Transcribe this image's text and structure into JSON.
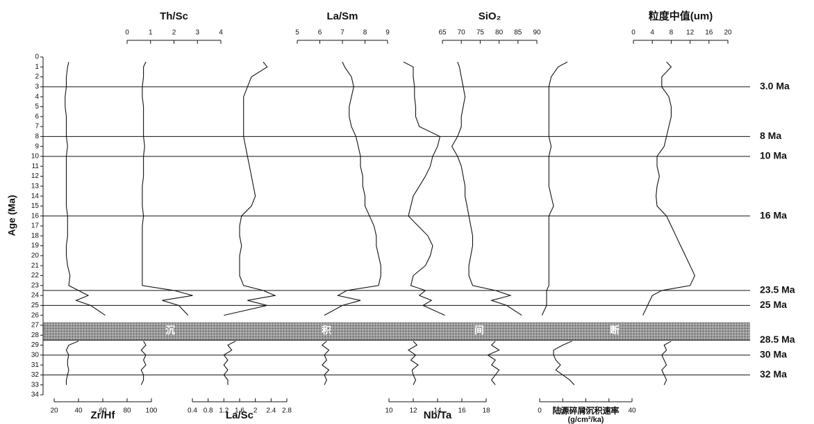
{
  "chart_data": {
    "type": "line",
    "ylabel": "Age (Ma)",
    "ylim": [
      0,
      34
    ],
    "yticks": [
      0,
      1,
      2,
      3,
      4,
      5,
      6,
      7,
      8,
      9,
      10,
      11,
      12,
      13,
      14,
      15,
      16,
      17,
      18,
      19,
      20,
      21,
      22,
      23,
      24,
      25,
      26,
      27,
      28,
      29,
      30,
      31,
      32,
      33,
      34
    ],
    "boundaries": [
      {
        "value": 3,
        "label": "3.0 Ma"
      },
      {
        "value": 8,
        "label": "8 Ma"
      },
      {
        "value": 10,
        "label": "10 Ma"
      },
      {
        "value": 16,
        "label": "16 Ma"
      },
      {
        "value": 23.5,
        "label": "23.5 Ma"
      },
      {
        "value": 25,
        "label": "25 Ma"
      },
      {
        "value": 28.5,
        "label": "28.5 Ma"
      },
      {
        "value": 30,
        "label": "30 Ma"
      },
      {
        "value": 32,
        "label": "32 Ma"
      }
    ],
    "hiatus": {
      "range": [
        26.7,
        28.5
      ],
      "labels": [
        "沉",
        "积",
        "间",
        "断"
      ]
    },
    "ages": [
      0.5,
      1,
      2,
      3,
      4,
      5,
      6,
      7,
      8,
      9,
      10,
      11,
      12,
      13,
      14,
      15,
      16,
      17,
      18,
      19,
      20,
      21,
      22,
      23,
      23.5,
      24,
      24.5,
      25,
      26,
      27.5,
      28.6,
      29,
      29.5,
      30,
      30.5,
      31,
      31.5,
      32,
      32.5,
      33
    ],
    "panels": [
      {
        "xlabel": "Zr/Hf",
        "axis": "bottom",
        "xlim": [
          20,
          100
        ],
        "xticks": [
          20,
          40,
          60,
          80,
          100
        ],
        "values": [
          32,
          31,
          30,
          30,
          29,
          29,
          30,
          30,
          30,
          31,
          30,
          30,
          30,
          30,
          30,
          30,
          31,
          31,
          31,
          30,
          30,
          31,
          33,
          32,
          40,
          48,
          38,
          50,
          62,
          null,
          40,
          32,
          30,
          32,
          31,
          31,
          32,
          31,
          30,
          30
        ]
      },
      {
        "xlabel": "Th/Sc",
        "axis": "top",
        "xlim": [
          0,
          4
        ],
        "xticks": [
          0,
          1,
          2,
          3,
          4
        ],
        "values": [
          0.8,
          0.7,
          0.7,
          0.65,
          0.65,
          0.7,
          0.7,
          0.7,
          0.7,
          0.75,
          0.7,
          0.7,
          0.7,
          0.65,
          0.65,
          0.65,
          0.7,
          0.65,
          0.65,
          0.65,
          0.65,
          0.65,
          0.65,
          0.65,
          2,
          2.8,
          1.5,
          2.2,
          2.6,
          null,
          0.7,
          0.8,
          0.6,
          0.8,
          0.7,
          0.8,
          0.6,
          0.7,
          0.7,
          0.6
        ]
      },
      {
        "xlabel": "La/Sc",
        "axis": "bottom",
        "xlim": [
          0.4,
          2.8
        ],
        "xticks": [
          0.4,
          0.8,
          1.2,
          1.6,
          2,
          2.4,
          2.8
        ],
        "values": [
          2.2,
          2.3,
          1.9,
          1.8,
          1.7,
          1.7,
          1.7,
          1.7,
          1.7,
          1.75,
          1.8,
          1.85,
          1.9,
          1.95,
          2,
          1.9,
          1.65,
          1.6,
          1.6,
          1.65,
          1.6,
          1.6,
          1.6,
          1.7,
          2.2,
          2.5,
          1.8,
          2.3,
          1.2,
          null,
          1.5,
          1.3,
          1.4,
          1.2,
          1.3,
          1.2,
          1.3,
          1.2,
          1.3,
          1.3
        ]
      },
      {
        "xlabel": "La/Sm",
        "axis": "top",
        "xlim": [
          5,
          9
        ],
        "xticks": [
          5,
          6,
          7,
          8,
          9
        ],
        "values": [
          7.0,
          7.1,
          7.4,
          7.5,
          7.4,
          7.3,
          7.3,
          7.4,
          7.6,
          7.7,
          7.8,
          7.8,
          7.9,
          7.9,
          8.0,
          8.0,
          8.2,
          8.4,
          8.5,
          8.5,
          8.6,
          8.7,
          8.7,
          8.6,
          7.2,
          6.8,
          7.8,
          7.0,
          6.2,
          null,
          6.3,
          6.1,
          6.4,
          6.2,
          6.3,
          6.1,
          6.4,
          6.2,
          6.3,
          6.2
        ]
      },
      {
        "xlabel": "Nb/Ta",
        "axis": "bottom",
        "xlim": [
          10,
          18
        ],
        "xticks": [
          10,
          12,
          14,
          16,
          18
        ],
        "values": [
          11.2,
          12.0,
          12.0,
          12.1,
          12.1,
          12.2,
          12.2,
          12.5,
          14.2,
          14.0,
          13.6,
          13.4,
          13.0,
          12.5,
          12.0,
          11.8,
          11.6,
          12.4,
          13.2,
          13.6,
          13.4,
          13.0,
          12.0,
          11.8,
          13.0,
          12.5,
          13.5,
          12.8,
          14.6,
          null,
          12.0,
          12.3,
          11.6,
          12.2,
          11.8,
          12.4,
          11.9,
          12.0,
          12.2,
          12.0
        ]
      },
      {
        "xlabel": "SiO₂",
        "axis": "top",
        "xlim": [
          65,
          90
        ],
        "xticks": [
          65,
          70,
          75,
          80,
          85,
          90
        ],
        "values": [
          69,
          69.5,
          70,
          70.5,
          71,
          70.5,
          70,
          70,
          69,
          67.5,
          69,
          70,
          70.5,
          71,
          71,
          71.5,
          72,
          72.5,
          73,
          73,
          72.5,
          72,
          72,
          73,
          79,
          83,
          78,
          82,
          86,
          null,
          79,
          78,
          80,
          77,
          79,
          78,
          80,
          79,
          78,
          79
        ]
      },
      {
        "xlabel": "陆源碎屑沉积速率",
        "xlabel2": "(g/cm²/ka)",
        "axis": "bottom",
        "xlim": [
          0,
          40
        ],
        "xticks": [
          0,
          10,
          20,
          30,
          40
        ],
        "values": [
          12,
          8,
          5,
          4,
          4,
          4,
          4,
          4,
          4,
          5,
          4,
          4,
          4,
          4,
          5,
          6,
          4,
          4,
          4,
          4,
          4,
          4,
          4,
          4,
          3,
          3,
          3,
          3,
          1,
          null,
          14,
          10,
          6,
          6,
          7,
          9,
          7,
          10,
          13,
          15
        ]
      },
      {
        "xlabel": "粒度中值(um)",
        "axis": "top",
        "xlim": [
          0,
          20
        ],
        "xticks": [
          0,
          4,
          8,
          12,
          16,
          20
        ],
        "values": [
          7,
          8,
          6,
          6,
          7.5,
          8,
          8,
          7.5,
          7,
          6.5,
          5,
          5,
          5.5,
          5,
          4.8,
          5,
          7,
          8,
          9,
          10,
          11,
          12,
          13,
          12,
          6,
          4,
          3.5,
          3,
          2,
          null,
          8,
          6.5,
          7,
          6,
          6.5,
          7,
          6,
          6.5,
          7,
          6.5
        ]
      }
    ]
  }
}
